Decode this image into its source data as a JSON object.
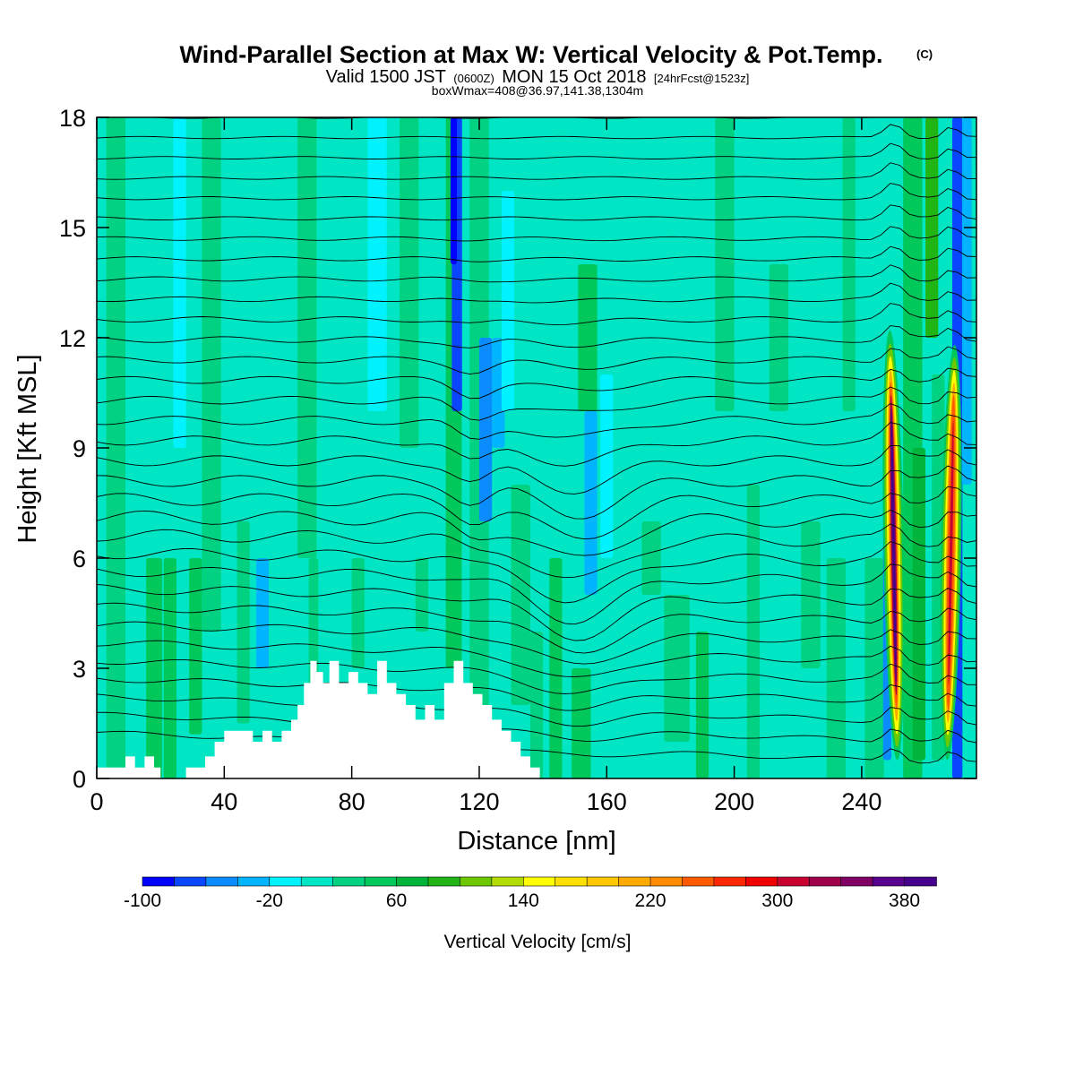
{
  "chart_data": {
    "type": "heatmap",
    "title": "Wind-Parallel Section at Max W: Vertical Velocity & Pot.Temp.",
    "title_mark": "(C)",
    "subtitle_main": "Valid 1500 JST",
    "subtitle_utc": "(0600Z)",
    "subtitle_date": "MON 15 Oct 2018",
    "subtitle_fcst": "[24hrFcst@1523z]",
    "subtitle2": "boxWmax=408@36.97,141.38,1304m",
    "xlabel": "Distance [nm]",
    "ylabel": "Height [Kft MSL]",
    "xlim": [
      0,
      276
    ],
    "ylim": [
      0,
      18
    ],
    "xticks": [
      0,
      40,
      80,
      120,
      160,
      200,
      240
    ],
    "yticks": [
      0,
      3,
      6,
      9,
      12,
      15,
      18
    ],
    "xtick_labels": [
      "0",
      "40",
      "80",
      "120",
      "160",
      "200",
      "240"
    ],
    "ytick_labels": [
      "0",
      "3",
      "6",
      "9",
      "12",
      "15",
      "18"
    ],
    "colorbar": {
      "title": "Vertical Velocity [cm/s]",
      "min": -100,
      "max": 400,
      "step": 20,
      "labels": [
        "-100",
        "-20",
        "60",
        "140",
        "220",
        "300",
        "380"
      ],
      "label_values": [
        -100,
        -20,
        60,
        140,
        220,
        300,
        380
      ],
      "colors": [
        "#0000ff",
        "#0a46ff",
        "#0a8cff",
        "#00b4ff",
        "#00f2ff",
        "#00e6c4",
        "#00d282",
        "#00c85a",
        "#00b43c",
        "#20b414",
        "#6ec800",
        "#b4dc00",
        "#ffff00",
        "#ffe000",
        "#ffc800",
        "#ffaa00",
        "#ff8c00",
        "#ff5a00",
        "#ff2800",
        "#f00000",
        "#c80032",
        "#a0004b",
        "#800064",
        "#5a0090",
        "#46008c"
      ]
    },
    "series": [
      {
        "type": "updraft",
        "x_center": 250,
        "z_min": 0.5,
        "z_max": 12.2,
        "peak_w": 408
      },
      {
        "type": "updraft",
        "x_center": 268,
        "z_min": 0.5,
        "z_max": 11.8,
        "peak_w": 300
      }
    ],
    "terrain": {
      "x": [
        0,
        6,
        9,
        12,
        15,
        18,
        20,
        23,
        26,
        28,
        31,
        34,
        37,
        40,
        43,
        46,
        49,
        52,
        55,
        58,
        61,
        63,
        65,
        67,
        69,
        71,
        73,
        76,
        79,
        82,
        85,
        88,
        91,
        94,
        97,
        100,
        103,
        106,
        109,
        112,
        115,
        118,
        121,
        124,
        127,
        130,
        133,
        136,
        139
      ],
      "z": [
        0.3,
        0.3,
        0.6,
        0.3,
        0.6,
        0.3,
        0,
        0,
        0,
        0.3,
        0.3,
        0.6,
        1.0,
        1.3,
        1.3,
        1.3,
        1.0,
        1.3,
        1.0,
        1.3,
        1.6,
        2.0,
        2.6,
        3.2,
        2.9,
        2.6,
        3.2,
        2.6,
        2.9,
        2.6,
        2.3,
        3.2,
        2.6,
        2.3,
        2.0,
        1.6,
        2.0,
        1.6,
        2.6,
        3.2,
        2.6,
        2.3,
        2.0,
        1.6,
        1.3,
        1.0,
        0.6,
        0.3,
        0
      ]
    }
  }
}
